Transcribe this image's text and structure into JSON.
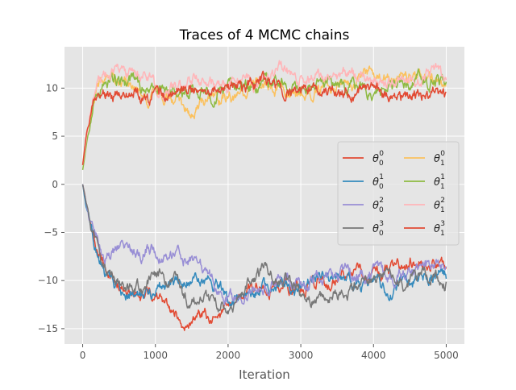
{
  "chart_data": {
    "type": "line",
    "title": "Traces of 4 MCMC chains",
    "xlabel": "Iteration",
    "ylabel": "",
    "xlim": [
      -250,
      5250
    ],
    "ylim": [
      -16.6,
      14.3
    ],
    "xticks": [
      0,
      1000,
      2000,
      3000,
      4000,
      5000
    ],
    "yticks": [
      -15,
      -10,
      -5,
      0,
      5,
      10
    ],
    "grid": true,
    "legend": {
      "placement": "center-right",
      "columns": 2
    },
    "series": [
      {
        "name": "θ₀⁰",
        "base": "θ",
        "sub": "0",
        "sup": "0",
        "color": "#E24A33",
        "x": [
          0,
          50,
          100,
          150,
          200,
          300,
          400,
          500,
          700,
          900,
          1100,
          1300,
          1400,
          1500,
          1700,
          1900,
          2000,
          2200,
          2400,
          2600,
          2800,
          3000,
          3200,
          3400,
          3600,
          3800,
          4000,
          4200,
          4400,
          4600,
          4800,
          5000
        ],
        "y": [
          0,
          -2,
          -4,
          -5.5,
          -7,
          -8.5,
          -9.8,
          -10.3,
          -11,
          -11.5,
          -12.5,
          -13.5,
          -14.8,
          -13.8,
          -13.5,
          -13.8,
          -13.2,
          -11.5,
          -10.8,
          -10.5,
          -11,
          -10.5,
          -10.2,
          -9.8,
          -9.5,
          -9.2,
          -9.5,
          -9,
          -8.5,
          -7.5,
          -8.5,
          -8
        ]
      },
      {
        "name": "θ₀¹",
        "base": "θ",
        "sub": "0",
        "sup": "1",
        "color": "#348ABD",
        "x": [
          0,
          50,
          100,
          150,
          200,
          300,
          400,
          500,
          700,
          900,
          1100,
          1300,
          1500,
          1700,
          1900,
          2000,
          2200,
          2400,
          2600,
          2800,
          3000,
          3200,
          3400,
          3600,
          3800,
          4000,
          4200,
          4400,
          4600,
          4800,
          5000
        ],
        "y": [
          0,
          -2.5,
          -4,
          -5,
          -6.5,
          -9,
          -10.5,
          -11,
          -11.2,
          -11,
          -10.5,
          -10.2,
          -10,
          -9.8,
          -10.5,
          -11.8,
          -11.5,
          -11.2,
          -11,
          -10.5,
          -10.8,
          -10,
          -9.8,
          -10.2,
          -10.5,
          -10.3,
          -11.5,
          -10.5,
          -10,
          -9.5,
          -9.5
        ]
      },
      {
        "name": "θ₀²",
        "base": "θ",
        "sub": "0",
        "sup": "2",
        "color": "#988ED5",
        "x": [
          0,
          50,
          100,
          150,
          200,
          300,
          400,
          500,
          600,
          700,
          800,
          900,
          1000,
          1100,
          1300,
          1500,
          1700,
          1900,
          2000,
          2200,
          2400,
          2600,
          2800,
          3000,
          3200,
          3400,
          3600,
          3800,
          4000,
          4200,
          4400,
          4600,
          4800,
          5000
        ],
        "y": [
          0,
          -2,
          -3.8,
          -5,
          -6,
          -7.5,
          -7.2,
          -6.5,
          -6.8,
          -7.2,
          -7,
          -6.5,
          -7,
          -7.8,
          -7.5,
          -8,
          -9,
          -11.5,
          -12,
          -11.5,
          -11,
          -10.5,
          -10.2,
          -10,
          -9.8,
          -9.5,
          -9.3,
          -9.5,
          -9,
          -9.5,
          -9.2,
          -8.8,
          -9,
          -8.5
        ]
      },
      {
        "name": "θ₀³",
        "base": "θ",
        "sub": "0",
        "sup": "3",
        "color": "#777777",
        "x": [
          0,
          50,
          100,
          150,
          200,
          300,
          400,
          500,
          600,
          700,
          800,
          900,
          1000,
          1100,
          1200,
          1300,
          1400,
          1500,
          1600,
          1700,
          1800,
          1900,
          2000,
          2100,
          2200,
          2300,
          2400,
          2500,
          2600,
          2800,
          3000,
          3200,
          3400,
          3600,
          3800,
          4000,
          4200,
          4400,
          4600,
          4800,
          5000
        ],
        "y": [
          0,
          -2,
          -3.8,
          -5.5,
          -7,
          -8.8,
          -10,
          -10.5,
          -11,
          -11.2,
          -10.5,
          -10,
          -9.5,
          -9.5,
          -10,
          -10.5,
          -12,
          -12.5,
          -12,
          -12,
          -12.2,
          -12.5,
          -12.5,
          -12,
          -11,
          -10.2,
          -9.5,
          -9,
          -9.5,
          -10,
          -11.2,
          -11.8,
          -11.5,
          -10.8,
          -10.8,
          -10,
          -9.5,
          -10.2,
          -9.8,
          -9.5,
          -10.2
        ]
      },
      {
        "name": "θ₁⁰",
        "base": "θ",
        "sub": "1",
        "sup": "0",
        "color": "#FBC15E",
        "x": [
          0,
          50,
          100,
          150,
          200,
          300,
          400,
          500,
          600,
          700,
          800,
          900,
          1000,
          1100,
          1200,
          1300,
          1400,
          1500,
          1600,
          1700,
          1800,
          1900,
          2000,
          2200,
          2400,
          2600,
          2800,
          3000,
          3200,
          3400,
          3600,
          3800,
          4000,
          4200,
          4400,
          4600,
          4800,
          5000
        ],
        "y": [
          2,
          5,
          7,
          9,
          10.5,
          11.5,
          11,
          10.5,
          10.2,
          10,
          9.5,
          9.2,
          9.3,
          9,
          8.8,
          8.5,
          7.8,
          7.5,
          8,
          8.5,
          8.2,
          8.5,
          9,
          9.5,
          10,
          10.5,
          9.5,
          9,
          9.5,
          9.8,
          10.5,
          11,
          11.5,
          11,
          11,
          11.2,
          11,
          11
        ]
      },
      {
        "name": "θ₁¹",
        "base": "θ",
        "sub": "1",
        "sup": "1",
        "color": "#8EBA42",
        "x": [
          0,
          50,
          100,
          150,
          200,
          300,
          400,
          500,
          600,
          700,
          800,
          900,
          1000,
          1200,
          1400,
          1600,
          1800,
          2000,
          2200,
          2400,
          2600,
          2800,
          3000,
          3200,
          3400,
          3600,
          3800,
          4000,
          4200,
          4400,
          4600,
          4800,
          5000
        ],
        "y": [
          1.5,
          4,
          6,
          8,
          9.5,
          10,
          10.5,
          10.5,
          10.2,
          10.5,
          10,
          10.3,
          10,
          9.5,
          9.5,
          9.8,
          9.5,
          9.8,
          10,
          10.2,
          10.5,
          10.8,
          10.5,
          10.8,
          10.5,
          10.2,
          10,
          9.8,
          10,
          10.2,
          11,
          10.5,
          10.5
        ]
      },
      {
        "name": "θ₁²",
        "base": "θ",
        "sub": "1",
        "sup": "2",
        "color": "#FFB5B8",
        "x": [
          0,
          50,
          100,
          150,
          200,
          300,
          400,
          500,
          600,
          700,
          800,
          900,
          1000,
          1100,
          1200,
          1300,
          1400,
          1500,
          1600,
          1700,
          1800,
          1900,
          2000,
          2200,
          2400,
          2600,
          2700,
          2800,
          3000,
          3200,
          3400,
          3600,
          3800,
          4000,
          4200,
          4400,
          4600,
          4800,
          5000
        ],
        "y": [
          2,
          4.5,
          7,
          9,
          10,
          11,
          11.8,
          12.2,
          11.8,
          12,
          11.5,
          11.5,
          10,
          9.5,
          9.8,
          10.2,
          10.5,
          10.8,
          10.5,
          10.8,
          10.5,
          10.5,
          10.2,
          10.5,
          10.8,
          11.5,
          12.2,
          11.5,
          11,
          11.2,
          11.5,
          11.3,
          11,
          10.8,
          11,
          10.8,
          11,
          11.2,
          10.8
        ]
      },
      {
        "name": "θ₁³",
        "base": "θ",
        "sub": "1",
        "sup": "3",
        "color": "#E24A33",
        "x": [
          0,
          50,
          100,
          150,
          200,
          300,
          400,
          500,
          600,
          700,
          800,
          900,
          1000,
          1200,
          1400,
          1600,
          1800,
          2000,
          2200,
          2400,
          2600,
          2800,
          3000,
          3200,
          3400,
          3600,
          3800,
          4000,
          4200,
          4400,
          4600,
          4800,
          5000
        ],
        "y": [
          2,
          5,
          6.5,
          8,
          9,
          9.5,
          9.3,
          9.5,
          9.2,
          9.5,
          8.5,
          8.5,
          9,
          9.5,
          10,
          9.5,
          9.8,
          10,
          10.2,
          10.5,
          10,
          9.5,
          9.8,
          10,
          9.5,
          9.2,
          9.5,
          9.8,
          9.5,
          9.2,
          9.5,
          9,
          8.8
        ]
      }
    ]
  }
}
